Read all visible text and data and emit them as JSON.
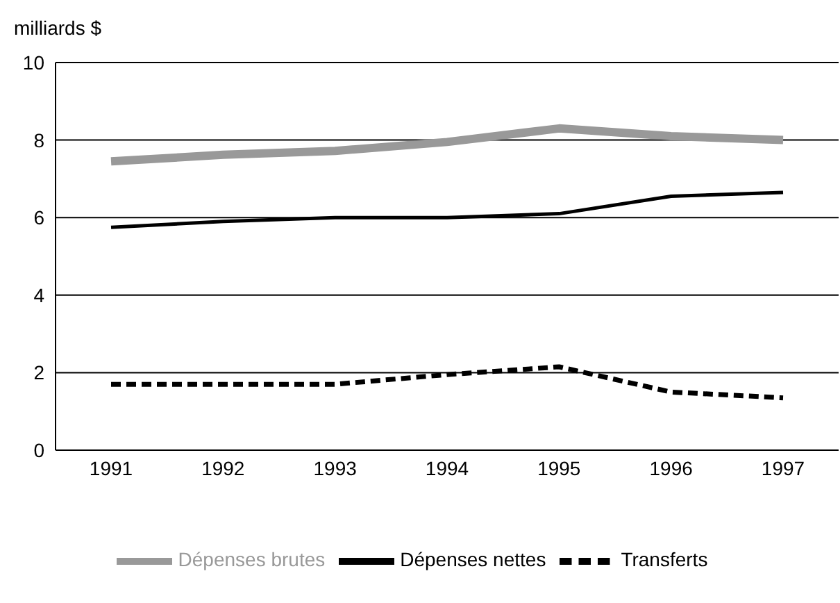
{
  "chart_data": {
    "type": "line",
    "ylabel": "milliards $",
    "categories": [
      "1991",
      "1992",
      "1993",
      "1994",
      "1995",
      "1996",
      "1997"
    ],
    "ylim": [
      0,
      10
    ],
    "yticks": [
      0,
      2,
      4,
      6,
      8,
      10
    ],
    "grid": "y",
    "legend": "bottom",
    "marker": "none",
    "series": [
      {
        "name": "Dépenses brutes",
        "color": "#999999",
        "line_style": "solid",
        "values": [
          7.45,
          7.62,
          7.72,
          7.95,
          8.3,
          8.1,
          8.0
        ]
      },
      {
        "name": "Dépenses nettes",
        "color": "#000000",
        "line_style": "solid",
        "values": [
          5.75,
          5.9,
          6.0,
          6.0,
          6.1,
          6.55,
          6.65
        ]
      },
      {
        "name": "Transferts",
        "color": "#000000",
        "line_style": "dashed",
        "values": [
          1.7,
          1.7,
          1.7,
          1.95,
          2.15,
          1.5,
          1.35
        ]
      }
    ]
  }
}
